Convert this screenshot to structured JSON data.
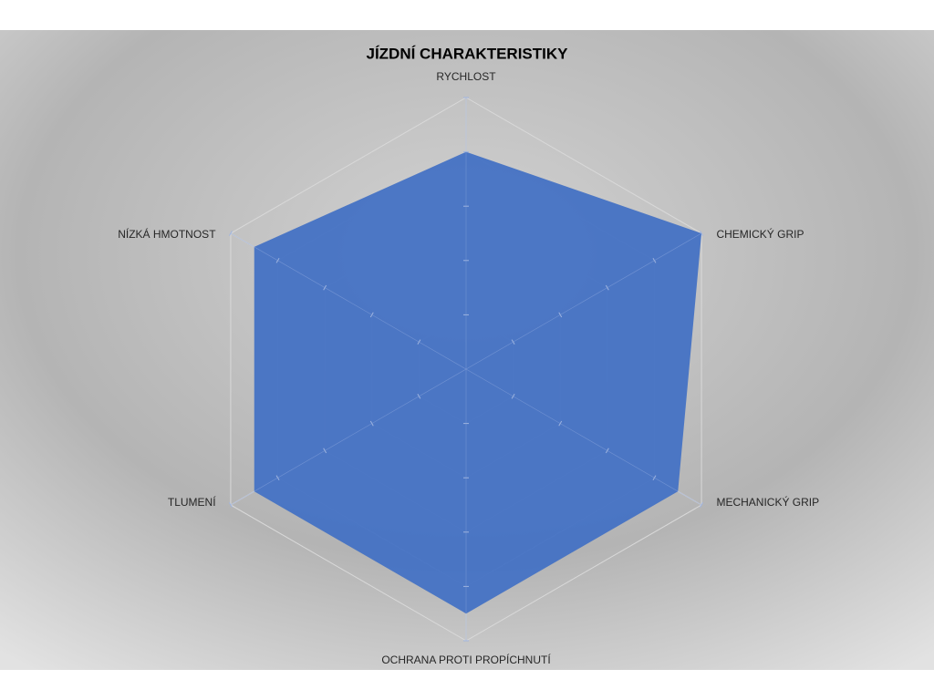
{
  "chart_data": {
    "type": "radar",
    "title": "JÍZDNÍ CHARAKTERISTIKY",
    "categories": [
      "RYCHLOST",
      "CHEMICKÝ GRIP",
      "MECHANICKÝ GRIP",
      "OCHRANA PROTI PROPÍCHNUTÍ",
      "TLUMENÍ",
      "NÍZKÁ HMOTNOST"
    ],
    "values": [
      4,
      5,
      4.5,
      4.5,
      4.5,
      4.5
    ],
    "color": "#4472c4",
    "rlim": [
      0,
      5
    ],
    "rticks": [
      0,
      1,
      2,
      3,
      4,
      5
    ],
    "grid": true
  }
}
